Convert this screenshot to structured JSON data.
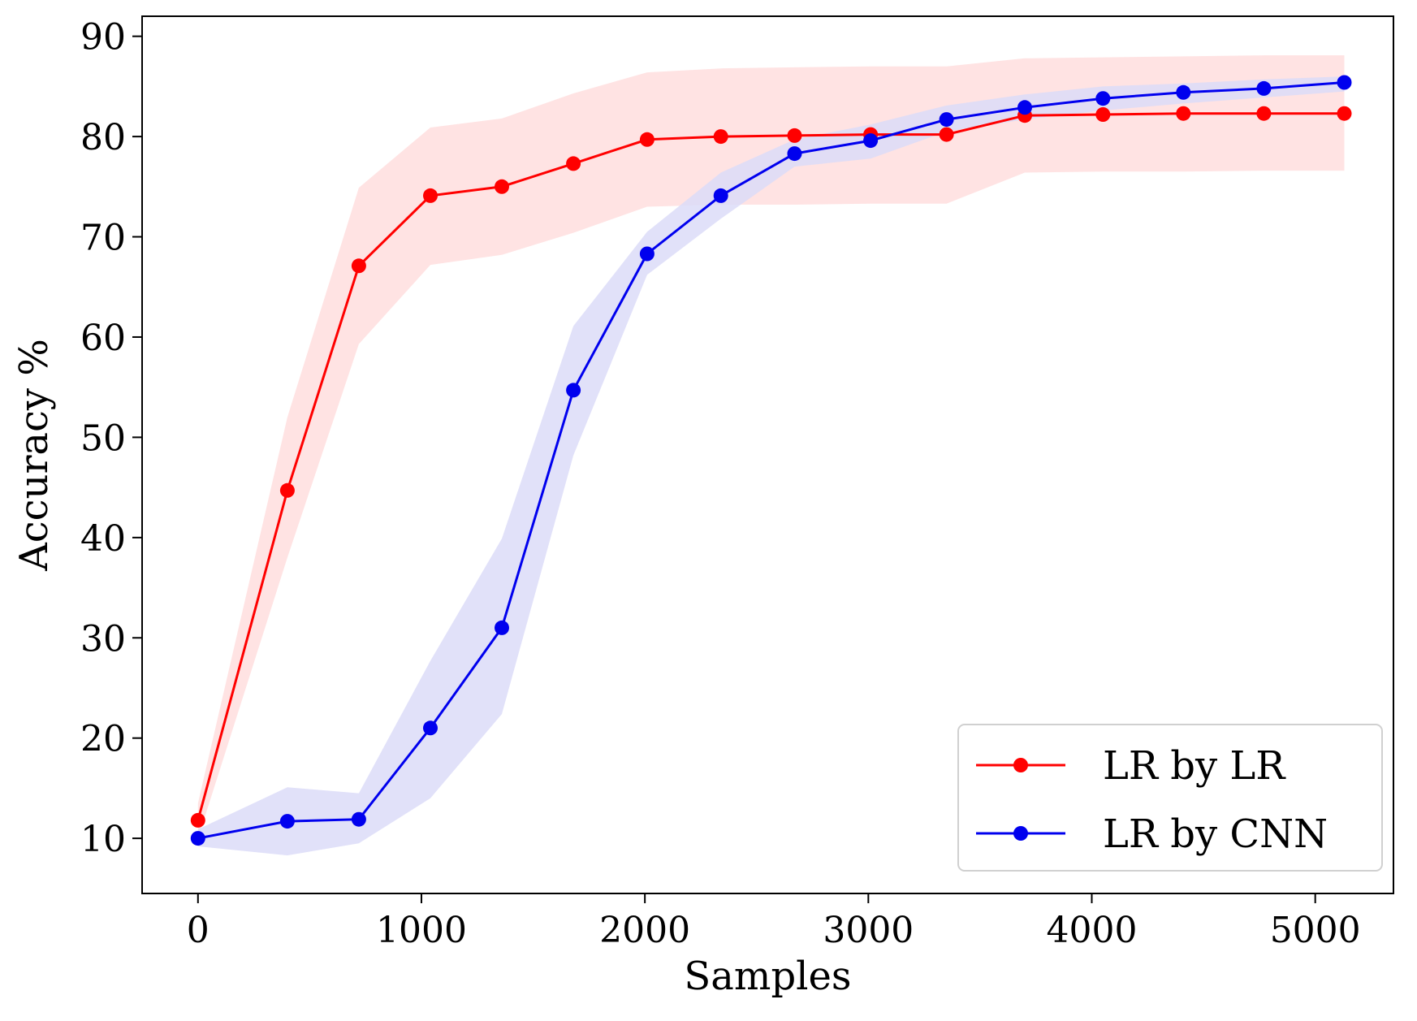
{
  "chart_data": {
    "type": "line",
    "title": "",
    "xlabel": "Samples",
    "ylabel": "Accuracy %",
    "xlim": [
      -250,
      5350
    ],
    "ylim": [
      4.5,
      92
    ],
    "xticks": [
      0,
      1000,
      2000,
      3000,
      4000,
      5000
    ],
    "yticks": [
      10,
      20,
      30,
      40,
      50,
      60,
      70,
      80,
      90
    ],
    "grid": false,
    "legend_position": "lower-right",
    "x": [
      0,
      400,
      720,
      1040,
      1360,
      1680,
      2010,
      2340,
      2670,
      3010,
      3350,
      3700,
      4050,
      4410,
      4770,
      5130
    ],
    "series": [
      {
        "name": "LR by LR",
        "color": "#ff0000",
        "band_color": "#ffdede",
        "marker": "circle",
        "values": [
          11.8,
          44.7,
          67.1,
          74.1,
          75.0,
          77.3,
          79.7,
          80.0,
          80.1,
          80.2,
          80.2,
          82.1,
          82.2,
          82.3,
          82.3,
          82.3
        ],
        "lower": [
          10.0,
          38.0,
          59.3,
          67.2,
          68.2,
          70.4,
          73.0,
          73.2,
          73.2,
          73.3,
          73.3,
          76.4,
          76.5,
          76.5,
          76.6,
          76.6
        ],
        "upper": [
          13.5,
          52.0,
          74.9,
          80.9,
          81.8,
          84.3,
          86.4,
          86.8,
          86.9,
          87.0,
          87.0,
          87.8,
          87.9,
          88.0,
          88.1,
          88.1
        ]
      },
      {
        "name": "LR by CNN",
        "color": "#0000ee",
        "band_color": "#dcdcf8",
        "marker": "circle",
        "values": [
          10.0,
          11.7,
          11.9,
          21.0,
          31.0,
          54.7,
          68.3,
          74.1,
          78.3,
          79.6,
          81.7,
          82.9,
          83.8,
          84.4,
          84.8,
          85.4
        ],
        "lower": [
          9.2,
          8.3,
          9.5,
          14.0,
          22.4,
          48.2,
          66.2,
          71.8,
          77.0,
          77.8,
          80.5,
          81.7,
          82.6,
          83.3,
          83.9,
          84.5
        ],
        "upper": [
          10.9,
          15.1,
          14.5,
          27.7,
          39.9,
          61.1,
          70.5,
          76.4,
          79.7,
          81.2,
          83.1,
          84.2,
          85.0,
          85.3,
          85.7,
          86.0
        ]
      }
    ]
  }
}
